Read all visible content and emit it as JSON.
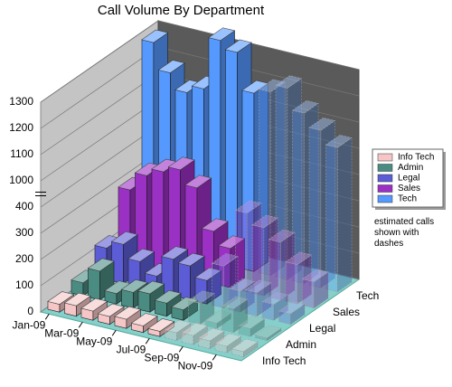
{
  "chart_data": {
    "type": "bar3d",
    "title": "Call Volume By Department",
    "categories": [
      "Jan-09",
      null,
      "Mar-09",
      null,
      "May-09",
      null,
      "Jul-09",
      null,
      "Sep-09",
      null,
      "Nov-09",
      null
    ],
    "series": [
      {
        "name": "Info Tech",
        "color": "#f6c6c6",
        "values": [
          30,
          40,
          35,
          30,
          35,
          25,
          20,
          30,
          35,
          30,
          25,
          20
        ]
      },
      {
        "name": "Admin",
        "color": "#4a8c82",
        "values": [
          50,
          110,
          40,
          60,
          70,
          50,
          40,
          80,
          20,
          90,
          30,
          10
        ]
      },
      {
        "name": "Legal",
        "color": "#5c5cd6",
        "values": [
          120,
          150,
          100,
          60,
          140,
          130,
          90,
          160,
          80,
          90,
          60,
          40
        ]
      },
      {
        "name": "Sales",
        "color": "#9b30c4",
        "values": [
          280,
          350,
          380,
          420,
          350,
          200,
          150,
          300,
          260,
          220,
          150,
          100
        ]
      },
      {
        "name": "Tech",
        "color": "#5599ff",
        "values": [
          1280,
          1180,
          1120,
          1150,
          1350,
          1320,
          1180,
          1200,
          1230,
          1150,
          1100,
          1050
        ]
      }
    ],
    "estimated_start_index": 7,
    "annotation": "estimated calls shown with dashes",
    "ylim": [
      0,
      1300
    ],
    "yticks": [
      0,
      100,
      200,
      300,
      400,
      1000,
      1100,
      1200,
      1300
    ],
    "axis_break": [
      400,
      1000
    ],
    "grid": true
  }
}
